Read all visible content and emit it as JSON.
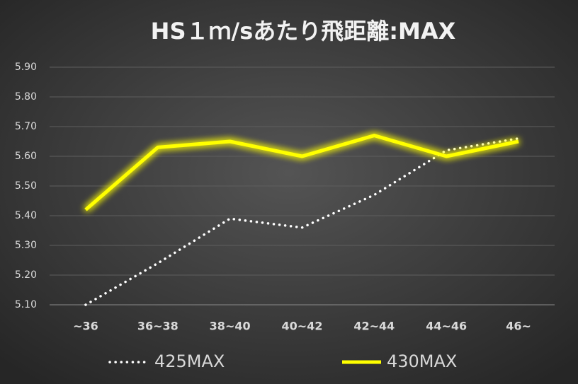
{
  "chart_data": {
    "type": "line",
    "title": "HS１ｍ/sあたり飛距離:MAX",
    "categories": [
      "~36",
      "36~38",
      "38~40",
      "40~42",
      "42~44",
      "44~46",
      "46~"
    ],
    "series": [
      {
        "name": "425MAX",
        "color": "#ffffff",
        "style": "dotted",
        "values": [
          5.1,
          5.24,
          5.39,
          5.36,
          5.47,
          5.62,
          5.66
        ]
      },
      {
        "name": "430MAX",
        "color": "#ffff00",
        "style": "solid",
        "values": [
          5.42,
          5.63,
          5.65,
          5.6,
          5.67,
          5.6,
          5.65
        ]
      }
    ],
    "ylim": [
      5.1,
      5.9
    ],
    "yticks": [
      {
        "value": 5.1,
        "label": "5.10"
      },
      {
        "value": 5.2,
        "label": "5.20"
      },
      {
        "value": 5.3,
        "label": "5.30"
      },
      {
        "value": 5.4,
        "label": "5.40"
      },
      {
        "value": 5.5,
        "label": "5.50"
      },
      {
        "value": 5.6,
        "label": "5.60"
      },
      {
        "value": 5.7,
        "label": "5.70"
      },
      {
        "value": 5.8,
        "label": "5.80"
      },
      {
        "value": 5.9,
        "label": "5.90"
      }
    ],
    "grid": true,
    "legend": "bottom"
  }
}
